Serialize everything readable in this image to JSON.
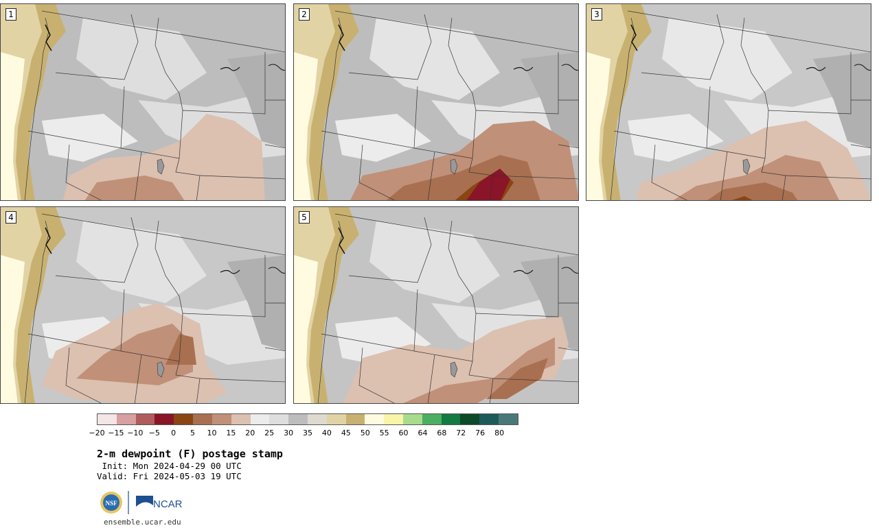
{
  "title": "2-m dewpoint (F) postage stamp",
  "init_line": " Init: Mon 2024-04-29 00 UTC",
  "valid_line": "Valid: Fri 2024-05-03 19 UTC",
  "site": "ensemble.ucar.edu",
  "logos": {
    "nsf": "NSF",
    "ncar": "NCAR"
  },
  "panels": [
    {
      "label": "1"
    },
    {
      "label": "2"
    },
    {
      "label": "3"
    },
    {
      "label": "4"
    },
    {
      "label": "5"
    }
  ],
  "colorbar": {
    "tick_labels": [
      "−20",
      "−15",
      "−10",
      "−5",
      "0",
      "5",
      "10",
      "15",
      "20",
      "25",
      "30",
      "35",
      "40",
      "45",
      "50",
      "55",
      "60",
      "64",
      "68",
      "72",
      "76",
      "80"
    ],
    "colors": [
      "#f3e6e4",
      "#d8a0a0",
      "#b05c5c",
      "#8a1428",
      "#8b4513",
      "#a87050",
      "#c09078",
      "#dcc0b0",
      "#ececec",
      "#dedede",
      "#bdbdbd",
      "#dedad0",
      "#e2d3a5",
      "#c8b170",
      "#fffbe0",
      "#f8f5a8",
      "#a8dc8c",
      "#4cae62",
      "#127a42",
      "#0c4a28",
      "#1e5a5a",
      "#4a7878"
    ]
  }
}
